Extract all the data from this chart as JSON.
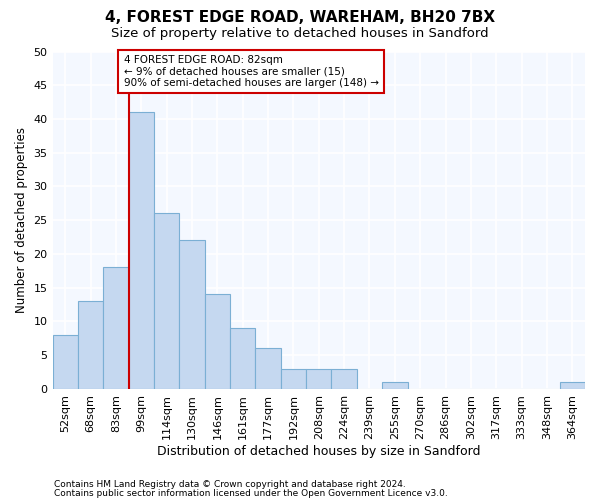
{
  "title1": "4, FOREST EDGE ROAD, WAREHAM, BH20 7BX",
  "title2": "Size of property relative to detached houses in Sandford",
  "xlabel": "Distribution of detached houses by size in Sandford",
  "ylabel": "Number of detached properties",
  "bin_labels": [
    "52sqm",
    "68sqm",
    "83sqm",
    "99sqm",
    "114sqm",
    "130sqm",
    "146sqm",
    "161sqm",
    "177sqm",
    "192sqm",
    "208sqm",
    "224sqm",
    "239sqm",
    "255sqm",
    "270sqm",
    "286sqm",
    "302sqm",
    "317sqm",
    "333sqm",
    "348sqm",
    "364sqm"
  ],
  "bar_values": [
    8,
    13,
    18,
    41,
    26,
    22,
    14,
    9,
    6,
    3,
    3,
    3,
    0,
    1,
    0,
    0,
    0,
    0,
    0,
    0,
    1
  ],
  "bar_color": "#c5d8f0",
  "bar_edge_color": "#7bafd4",
  "vline_x": 2.5,
  "vline_color": "#cc0000",
  "annotation_text": "4 FOREST EDGE ROAD: 82sqm\n← 9% of detached houses are smaller (15)\n90% of semi-detached houses are larger (148) →",
  "annotation_box_color": "#ffffff",
  "annotation_box_edge": "#cc0000",
  "ylim": [
    0,
    50
  ],
  "yticks": [
    0,
    5,
    10,
    15,
    20,
    25,
    30,
    35,
    40,
    45,
    50
  ],
  "footer1": "Contains HM Land Registry data © Crown copyright and database right 2024.",
  "footer2": "Contains public sector information licensed under the Open Government Licence v3.0.",
  "bg_color": "#ffffff",
  "plot_bg_color": "#f4f8ff",
  "grid_color": "#ffffff",
  "title1_fontsize": 11,
  "title2_fontsize": 9.5,
  "xlabel_fontsize": 9,
  "ylabel_fontsize": 8.5,
  "tick_fontsize": 8,
  "footer_fontsize": 6.5
}
